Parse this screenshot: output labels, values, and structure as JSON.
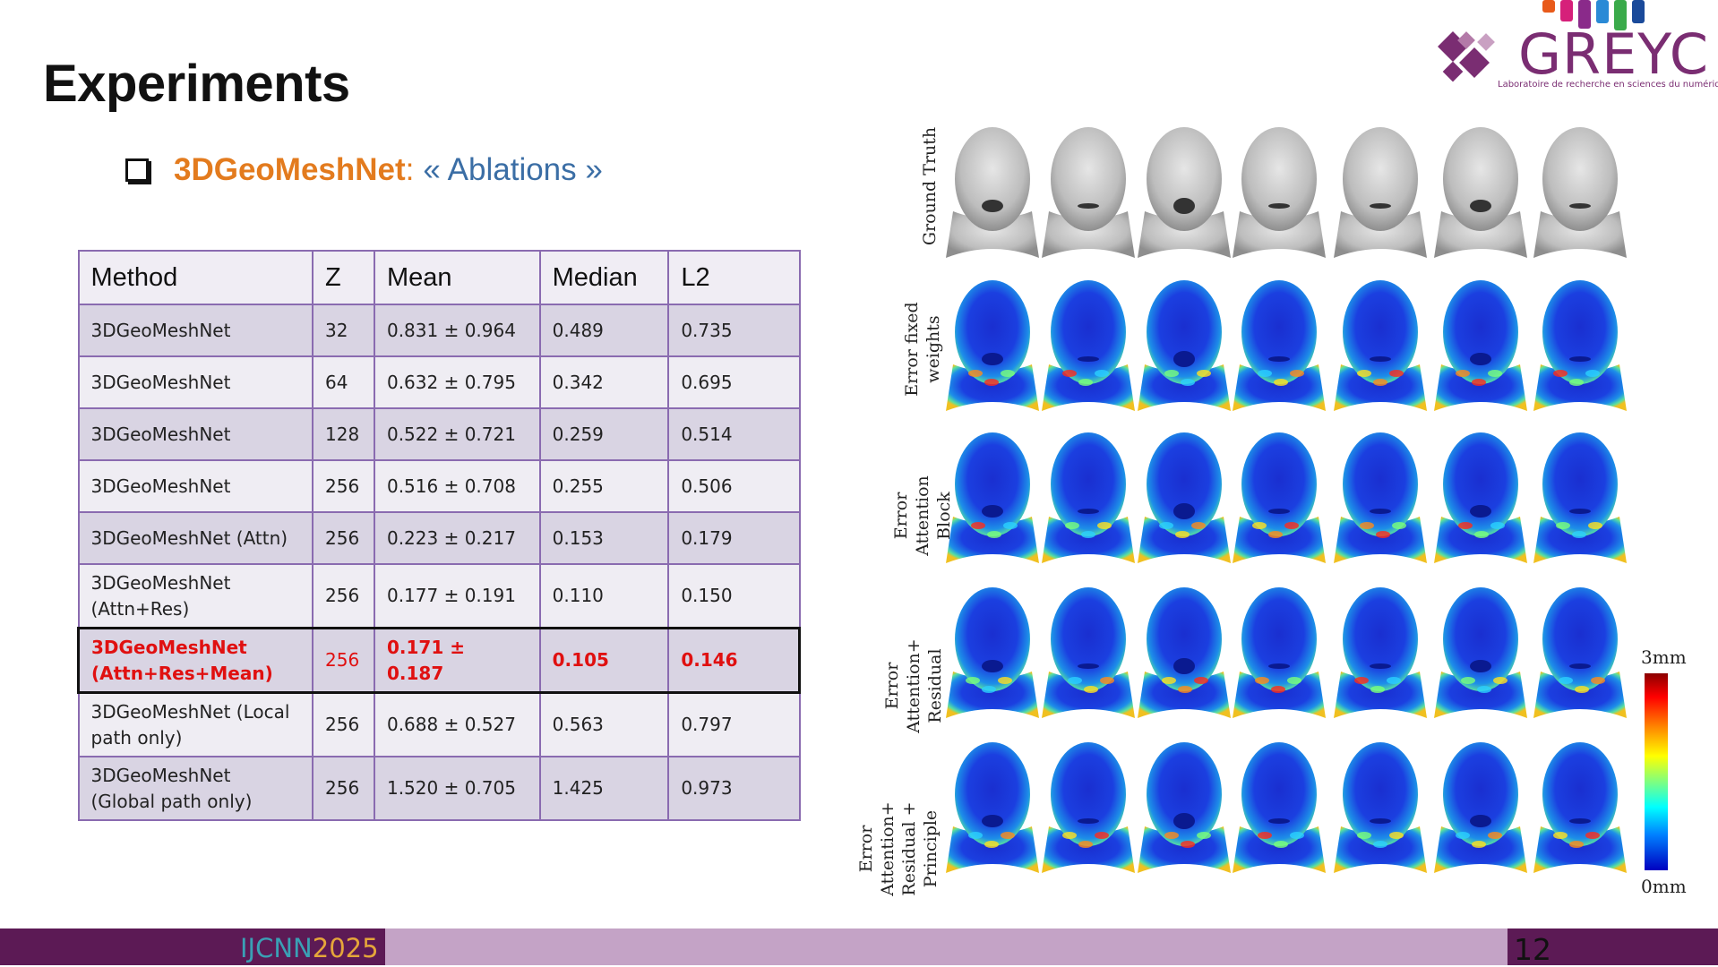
{
  "slide": {
    "title": "Experiments",
    "page_number": "12"
  },
  "bullet": {
    "main": "3DGeoMeshNet",
    "separator": ":",
    "sub": "« Ablations »"
  },
  "table": {
    "headers": [
      "Method",
      "Z",
      "Mean",
      "Median",
      "L2"
    ],
    "rows": [
      {
        "method": "3DGeoMeshNet",
        "z": "32",
        "mean": "0.831 ± 0.964",
        "median": "0.489",
        "l2": "0.735"
      },
      {
        "method": "3DGeoMeshNet",
        "z": "64",
        "mean": "0.632 ± 0.795",
        "median": "0.342",
        "l2": "0.695"
      },
      {
        "method": "3DGeoMeshNet",
        "z": "128",
        "mean": "0.522 ± 0.721",
        "median": "0.259",
        "l2": "0.514"
      },
      {
        "method": "3DGeoMeshNet",
        "z": "256",
        "mean": "0.516 ± 0.708",
        "median": "0.255",
        "l2": "0.506"
      },
      {
        "method": "3DGeoMeshNet (Attn)",
        "z": "256",
        "mean": "0.223 ± 0.217",
        "median": "0.153",
        "l2": "0.179"
      },
      {
        "method": "3DGeoMeshNet (Attn+Res)",
        "z": "256",
        "mean": "0.177 ± 0.191",
        "median": "0.110",
        "l2": "0.150"
      },
      {
        "method": "3DGeoMeshNet (Attn+Res+Mean)",
        "z": "256",
        "mean": "0.171 ± 0.187",
        "median": "0.105",
        "l2": "0.146"
      },
      {
        "method": "3DGeoMeshNet (Local path only)",
        "z": "256",
        "mean": "0.688 ± 0.527",
        "median": "0.563",
        "l2": "0.797"
      },
      {
        "method": "3DGeoMeshNet (Global path only)",
        "z": "256",
        "mean": "1.520 ± 0.705",
        "median": "1.425",
        "l2": "0.973"
      }
    ]
  },
  "figure": {
    "row_labels": [
      "Ground Truth",
      "Error fixed weights",
      "Error Attention Block",
      "Error Attention+ Residual",
      "Error Attention+ Residual + Principle"
    ],
    "scale_max": "3mm",
    "scale_min": "0mm"
  },
  "footer": {
    "conf_prefix": "IJCNN",
    "conf_year": "2025"
  },
  "logo": {
    "name": "GREYC",
    "tagline": "Laboratoire de recherche en sciences du numérique"
  },
  "colors": {
    "accent_orange": "#e37b1e",
    "accent_blue": "#3b6ea5",
    "purple": "#5c1a55",
    "footer_light": "#c4a3c6",
    "highlight_red": "#e01010"
  }
}
